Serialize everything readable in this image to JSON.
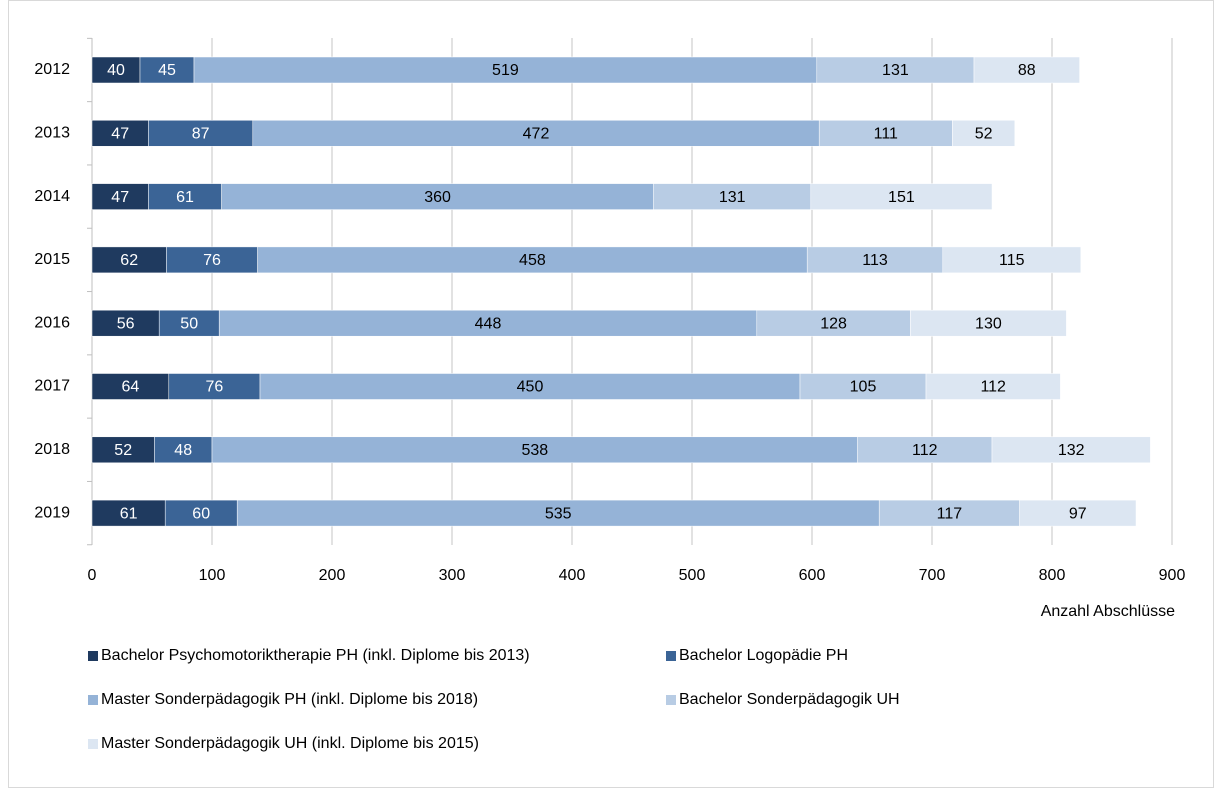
{
  "chart_data": {
    "type": "stacked-barh",
    "categories": [
      "2012",
      "2013",
      "2014",
      "2015",
      "2016",
      "2017",
      "2018",
      "2019"
    ],
    "series": [
      {
        "name": "Bachelor Psychomotoriktherapie PH (inkl. Diplome bis 2013)",
        "color": "#1f3a5f",
        "text_color": "#ffffff",
        "values": [
          40,
          47,
          47,
          62,
          56,
          64,
          52,
          61
        ]
      },
      {
        "name": "Bachelor Logopädie PH",
        "color": "#3b6496",
        "text_color": "#ffffff",
        "values": [
          45,
          87,
          61,
          76,
          50,
          76,
          48,
          60
        ]
      },
      {
        "name": "Master Sonderpädagogik PH (inkl. Diplome bis 2018)",
        "color": "#95b3d7",
        "text_color": "#000000",
        "values": [
          519,
          472,
          360,
          458,
          448,
          450,
          538,
          535
        ]
      },
      {
        "name": "Bachelor Sonderpädagogik UH",
        "color": "#b8cce4",
        "text_color": "#000000",
        "values": [
          131,
          111,
          131,
          113,
          128,
          105,
          112,
          117
        ]
      },
      {
        "name": "Master Sonderpädagogik UH (inkl. Diplome bis 2015)",
        "color": "#dce6f2",
        "text_color": "#000000",
        "values": [
          88,
          52,
          151,
          115,
          130,
          112,
          132,
          97
        ]
      }
    ],
    "xlabel": "Anzahl Abschlüsse",
    "xlim": [
      0,
      900
    ],
    "xticks": [
      0,
      100,
      200,
      300,
      400,
      500,
      600,
      700,
      800,
      900
    ],
    "grid": true
  }
}
